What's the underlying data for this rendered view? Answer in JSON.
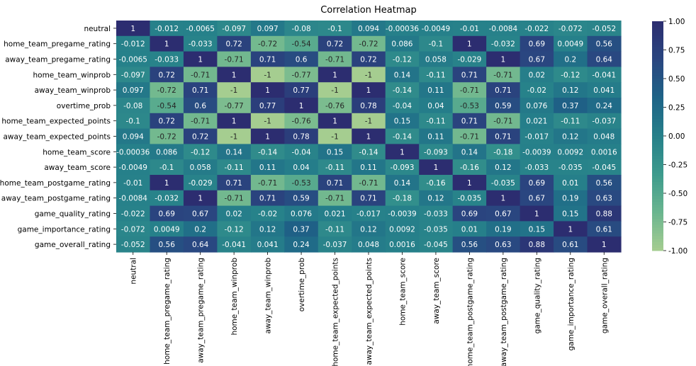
{
  "chart_data": {
    "type": "heatmap",
    "title": "Correlation Heatmap",
    "xlabel": "",
    "ylabel": "",
    "categories": [
      "neutral",
      "home_team_pregame_rating",
      "away_team_pregame_rating",
      "home_team_winprob",
      "away_team_winprob",
      "overtime_prob",
      "home_team_expected_points",
      "away_team_expected_points",
      "home_team_score",
      "away_team_score",
      "home_team_postgame_rating",
      "away_team_postgame_rating",
      "game_quality_rating",
      "game_importance_rating",
      "game_overall_rating"
    ],
    "values": [
      [
        "1",
        "-0.012",
        "-0.0065",
        "-0.097",
        "0.097",
        "-0.08",
        "-0.1",
        "0.094",
        "-0.00036",
        "-0.0049",
        "-0.01",
        "-0.0084",
        "-0.022",
        "-0.072",
        "-0.052"
      ],
      [
        "-0.012",
        "1",
        "-0.033",
        "0.72",
        "-0.72",
        "-0.54",
        "0.72",
        "-0.72",
        "0.086",
        "-0.1",
        "1",
        "-0.032",
        "0.69",
        "0.0049",
        "0.56"
      ],
      [
        "-0.0065",
        "-0.033",
        "1",
        "-0.71",
        "0.71",
        "0.6",
        "-0.71",
        "0.72",
        "-0.12",
        "0.058",
        "-0.029",
        "1",
        "0.67",
        "0.2",
        "0.64"
      ],
      [
        "-0.097",
        "0.72",
        "-0.71",
        "1",
        "-1",
        "-0.77",
        "1",
        "-1",
        "0.14",
        "-0.11",
        "0.71",
        "-0.71",
        "0.02",
        "-0.12",
        "-0.041"
      ],
      [
        "0.097",
        "-0.72",
        "0.71",
        "-1",
        "1",
        "0.77",
        "-1",
        "1",
        "-0.14",
        "0.11",
        "-0.71",
        "0.71",
        "-0.02",
        "0.12",
        "0.041"
      ],
      [
        "-0.08",
        "-0.54",
        "0.6",
        "-0.77",
        "0.77",
        "1",
        "-0.76",
        "0.78",
        "-0.04",
        "0.04",
        "-0.53",
        "0.59",
        "0.076",
        "0.37",
        "0.24"
      ],
      [
        "-0.1",
        "0.72",
        "-0.71",
        "1",
        "-1",
        "-0.76",
        "1",
        "-1",
        "0.15",
        "-0.11",
        "0.71",
        "-0.71",
        "0.021",
        "-0.11",
        "-0.037"
      ],
      [
        "0.094",
        "-0.72",
        "0.72",
        "-1",
        "1",
        "0.78",
        "-1",
        "1",
        "-0.14",
        "0.11",
        "-0.71",
        "0.71",
        "-0.017",
        "0.12",
        "0.048"
      ],
      [
        "-0.00036",
        "0.086",
        "-0.12",
        "0.14",
        "-0.14",
        "-0.04",
        "0.15",
        "-0.14",
        "1",
        "-0.093",
        "0.14",
        "-0.18",
        "-0.0039",
        "0.0092",
        "0.0016"
      ],
      [
        "-0.0049",
        "-0.1",
        "0.058",
        "-0.11",
        "0.11",
        "0.04",
        "-0.11",
        "0.11",
        "-0.093",
        "1",
        "-0.16",
        "0.12",
        "-0.033",
        "-0.035",
        "-0.045"
      ],
      [
        "-0.01",
        "1",
        "-0.029",
        "0.71",
        "-0.71",
        "-0.53",
        "0.71",
        "-0.71",
        "0.14",
        "-0.16",
        "1",
        "-0.035",
        "0.69",
        "0.01",
        "0.56"
      ],
      [
        "-0.0084",
        "-0.032",
        "1",
        "-0.71",
        "0.71",
        "0.59",
        "-0.71",
        "0.71",
        "-0.18",
        "0.12",
        "-0.035",
        "1",
        "0.67",
        "0.19",
        "0.63"
      ],
      [
        "-0.022",
        "0.69",
        "0.67",
        "0.02",
        "-0.02",
        "0.076",
        "0.021",
        "-0.017",
        "-0.0039",
        "-0.033",
        "0.69",
        "0.67",
        "1",
        "0.15",
        "0.88"
      ],
      [
        "-0.072",
        "0.0049",
        "0.2",
        "-0.12",
        "0.12",
        "0.37",
        "-0.11",
        "0.12",
        "0.0092",
        "-0.035",
        "0.01",
        "0.19",
        "0.15",
        "1",
        "0.61"
      ],
      [
        "-0.052",
        "0.56",
        "0.64",
        "-0.041",
        "0.041",
        "0.24",
        "-0.037",
        "0.048",
        "0.0016",
        "-0.045",
        "0.56",
        "0.63",
        "0.88",
        "0.61",
        "1"
      ]
    ],
    "colorbar": {
      "range": [
        -1,
        1
      ],
      "ticks": [
        "1.00",
        "0.75",
        "0.50",
        "0.25",
        "0.00",
        "-0.25",
        "-0.50",
        "-0.75",
        "-1.00"
      ],
      "colormap": "crest",
      "colors": [
        "#a5cd90",
        "#6ab58f",
        "#3d9b8d",
        "#26808a",
        "#1e6387",
        "#2a4680",
        "#2c2d70"
      ]
    },
    "grid": false
  }
}
